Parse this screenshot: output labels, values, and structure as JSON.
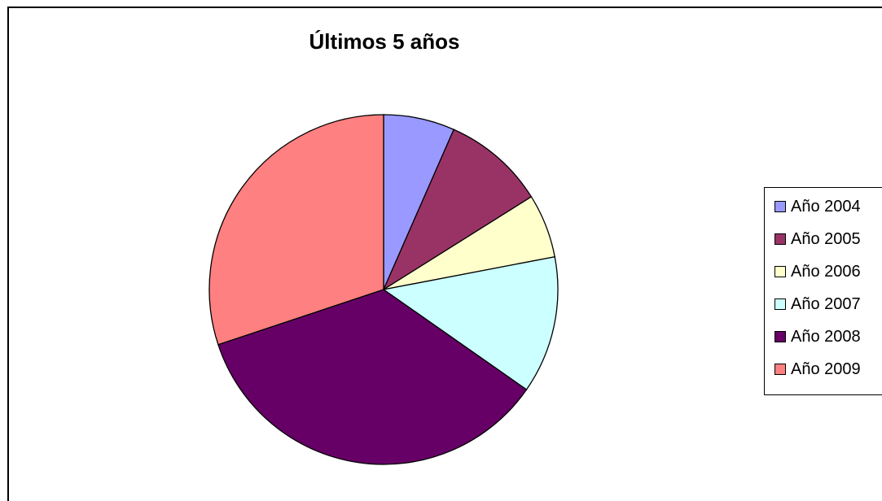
{
  "chart_data": {
    "type": "pie",
    "title": "Últimos 5 años",
    "legend_position": "right",
    "categories": [
      "Año 2004",
      "Año 2005",
      "Año 2006",
      "Año 2007",
      "Año 2008",
      "Año 2009"
    ],
    "values": [
      6.6,
      9.5,
      5.9,
      12.7,
      35.2,
      30.1
    ],
    "colors": [
      "#9999FF",
      "#993366",
      "#FFFFCC",
      "#CCFFFF",
      "#660066",
      "#FF8080"
    ]
  }
}
